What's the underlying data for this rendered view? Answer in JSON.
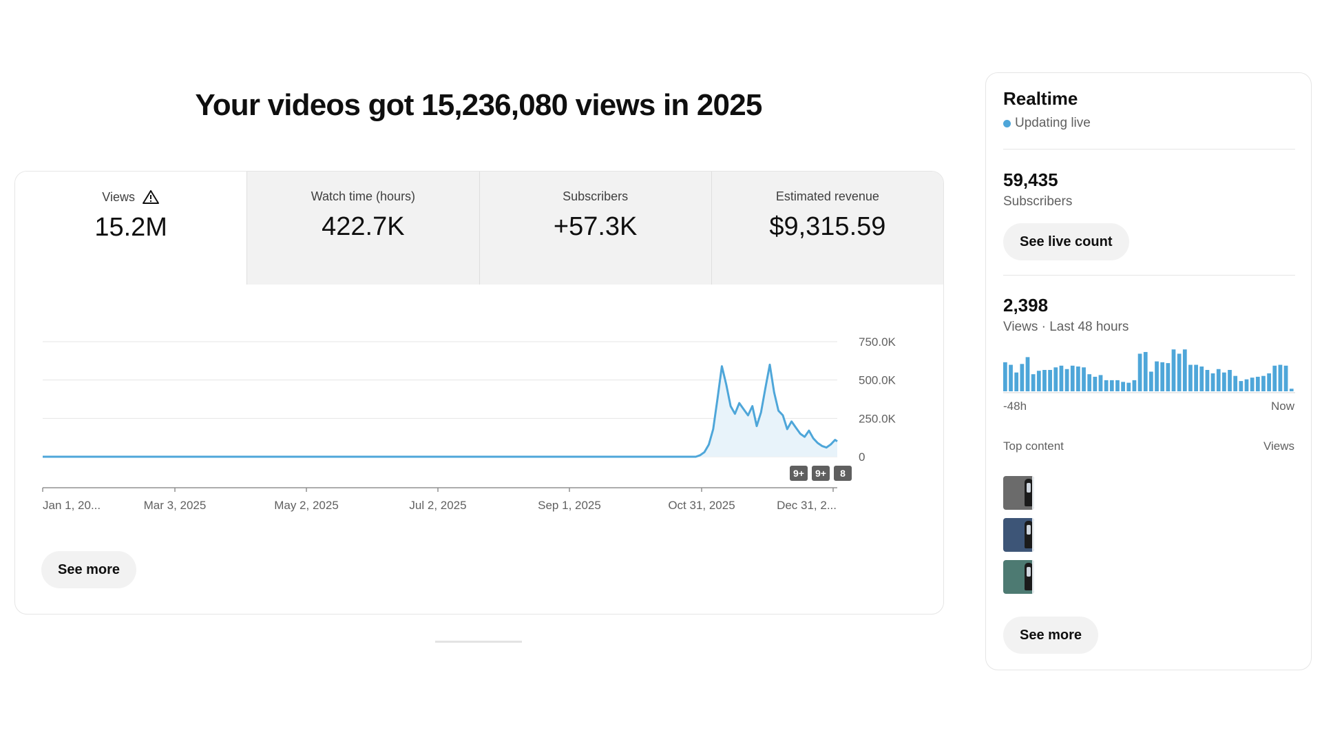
{
  "headline": "Your videos got 15,236,080 views in 2025",
  "metrics": [
    {
      "label": "Views",
      "value": "15.2M",
      "warning": true,
      "active": true
    },
    {
      "label": "Watch time (hours)",
      "value": "422.7K",
      "active": false
    },
    {
      "label": "Subscribers",
      "value": "+57.3K",
      "active": false
    },
    {
      "label": "Estimated revenue",
      "value": "$9,315.59",
      "active": false
    }
  ],
  "main_see_more": "See more",
  "chart_data": {
    "type": "area",
    "x_start": "Jan 1, 2025",
    "x_end": "Dec 31, 2025",
    "x_tick_labels": [
      "Jan 1, 20...",
      "Mar 3, 2025",
      "May 2, 2025",
      "Jul 2, 2025",
      "Sep 1, 2025",
      "Oct 31, 2025",
      "Dec 31, 2..."
    ],
    "y_ticks": [
      0,
      250000,
      500000,
      750000
    ],
    "y_tick_labels": [
      "0",
      "250.0K",
      "500.0K",
      "750.0K"
    ],
    "ylim": [
      0,
      750000
    ],
    "grid": true,
    "color": "#4ea6d9",
    "fill": "#e8f3fa",
    "series_days": [
      300,
      302,
      304,
      306,
      308,
      310,
      312,
      314,
      316,
      318,
      320,
      322,
      324,
      326,
      328,
      330,
      332,
      334,
      336,
      338,
      340,
      342,
      344,
      346,
      348,
      350,
      352,
      354,
      356,
      358,
      360,
      362,
      364,
      365
    ],
    "series_values": [
      0,
      10000,
      30000,
      80000,
      180000,
      380000,
      590000,
      470000,
      330000,
      280000,
      350000,
      310000,
      270000,
      330000,
      200000,
      290000,
      450000,
      600000,
      420000,
      300000,
      270000,
      180000,
      230000,
      190000,
      150000,
      130000,
      170000,
      120000,
      90000,
      70000,
      60000,
      80000,
      110000,
      100000
    ],
    "annotations": [
      "9+",
      "9+",
      "8"
    ]
  },
  "realtime": {
    "title": "Realtime",
    "status": "Updating live",
    "subscribers_value": "59,435",
    "subscribers_label": "Subscribers",
    "live_count_button": "See live count",
    "views_value": "2,398",
    "views_label": "Views · Last 48 hours",
    "hourly_views": [
      34,
      31,
      22,
      32,
      40,
      20,
      24,
      25,
      25,
      28,
      30,
      26,
      30,
      29,
      28,
      20,
      17,
      19,
      13,
      13,
      13,
      11,
      10,
      13,
      44,
      46,
      23,
      35,
      34,
      33,
      49,
      44,
      49,
      31,
      31,
      29,
      25,
      21,
      26,
      22,
      25,
      18,
      12,
      14,
      16,
      17,
      18,
      21,
      30,
      31,
      30,
      3
    ],
    "axis_start": "-48h",
    "axis_end": "Now",
    "bar_color": "#4ea6d9",
    "top_content_label": "Top content",
    "top_content_metric": "Views",
    "top_content_thumbs": [
      "#6b6b6b",
      "#3d5577",
      "#4d7a72"
    ],
    "see_more": "See more"
  }
}
